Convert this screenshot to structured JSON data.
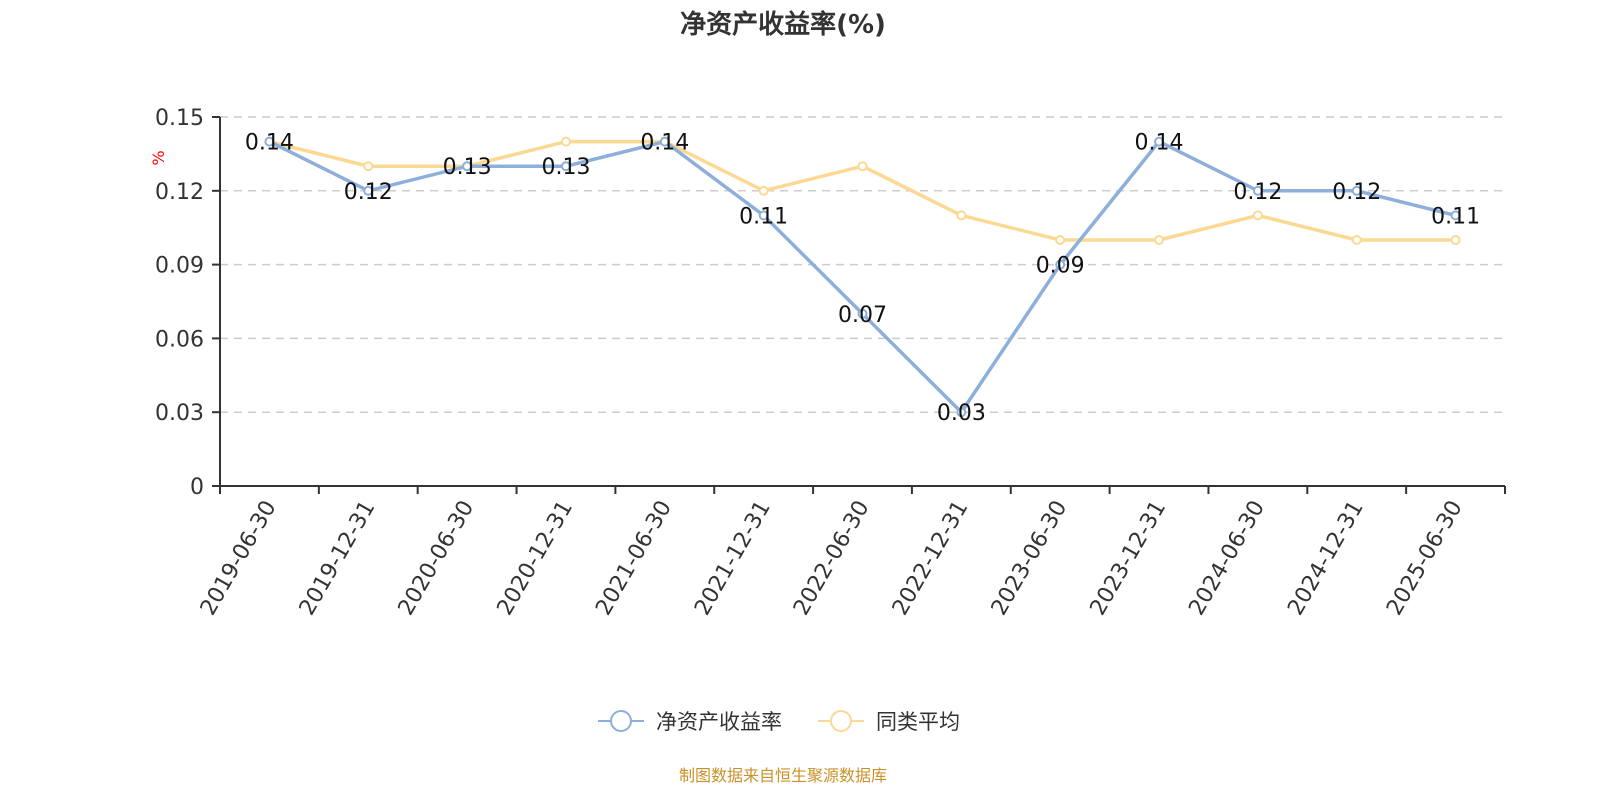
{
  "chart_data": {
    "type": "line",
    "title": "净资产收益率(%)",
    "ylabel": "%",
    "ylim": [
      0,
      0.15
    ],
    "yticks": [
      "0",
      "0.03",
      "0.06",
      "0.09",
      "0.12",
      "0.15"
    ],
    "grid": true,
    "legend_position": "bottom",
    "categories": [
      "2019-06-30",
      "2019-12-31",
      "2020-06-30",
      "2020-12-31",
      "2021-06-30",
      "2021-12-31",
      "2022-06-30",
      "2022-12-31",
      "2023-06-30",
      "2023-12-31",
      "2024-06-30",
      "2024-12-31",
      "2025-06-30"
    ],
    "series": [
      {
        "name": "净资产收益率",
        "color": "#8eaedb",
        "values": [
          0.14,
          0.12,
          0.13,
          0.13,
          0.14,
          0.11,
          0.07,
          0.03,
          0.09,
          0.14,
          0.12,
          0.12,
          0.11
        ],
        "data_labels": true
      },
      {
        "name": "同类平均",
        "color": "#fcd993",
        "values": [
          0.14,
          0.13,
          0.13,
          0.14,
          0.14,
          0.12,
          0.13,
          0.11,
          0.1,
          0.1,
          0.11,
          0.1,
          0.1
        ],
        "data_labels": false
      }
    ]
  },
  "footer": "制图数据来自恒生聚源数据库"
}
